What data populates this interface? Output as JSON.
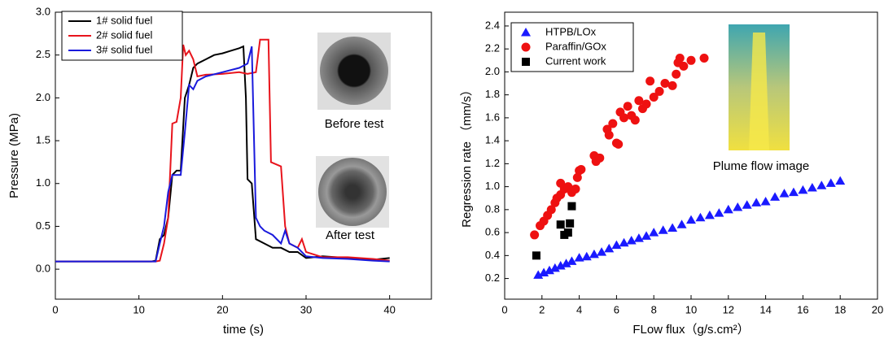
{
  "chart_data": [
    {
      "type": "line",
      "x_label": "time (s)",
      "y_label": "Pressure (MPa)",
      "xlim": [
        0,
        45
      ],
      "ylim": [
        -0.35,
        3.0
      ],
      "xticks": [
        0,
        10,
        20,
        30,
        40
      ],
      "yticks": [
        {
          "value": 0,
          "label": "0.0"
        },
        0.5,
        {
          "value": 1,
          "label": "1.0"
        },
        1.5,
        {
          "value": 2,
          "label": "2.0"
        },
        2.5,
        {
          "value": 3,
          "label": "3.0"
        }
      ],
      "annotations": [
        "Before test",
        "After test"
      ],
      "series": [
        {
          "name": "1# solid fuel",
          "color": "#000000",
          "x": [
            0,
            11.5,
            12,
            12.5,
            13,
            13.5,
            14,
            14.5,
            15,
            15.5,
            16,
            16.5,
            17,
            18,
            19,
            20,
            21,
            22,
            22.5,
            22.8,
            23,
            23.5,
            24,
            25,
            26,
            27,
            28,
            29,
            30,
            32,
            35,
            38,
            40
          ],
          "values": [
            0.09,
            0.09,
            0.1,
            0.35,
            0.4,
            0.6,
            1.1,
            1.15,
            1.15,
            2.0,
            2.15,
            2.35,
            2.4,
            2.45,
            2.5,
            2.52,
            2.55,
            2.58,
            2.6,
            2.0,
            1.05,
            1.0,
            0.35,
            0.3,
            0.25,
            0.25,
            0.2,
            0.2,
            0.13,
            0.15,
            0.13,
            0.11,
            0.13
          ]
        },
        {
          "name": "2# solid fuel",
          "color": "#e8141c",
          "x": [
            0,
            12,
            12.5,
            13,
            13.5,
            14,
            14.5,
            15,
            15.3,
            15.6,
            16,
            16.5,
            17,
            18,
            20,
            22,
            23,
            24,
            24.5,
            25.5,
            25.8,
            27,
            27.5,
            28,
            29,
            29.5,
            30,
            32,
            35,
            38,
            40
          ],
          "values": [
            0.09,
            0.09,
            0.1,
            0.3,
            0.6,
            1.7,
            1.72,
            2.0,
            2.62,
            2.5,
            2.55,
            2.45,
            2.25,
            2.27,
            2.28,
            2.3,
            2.28,
            2.3,
            2.68,
            2.68,
            1.25,
            1.2,
            0.5,
            0.3,
            0.25,
            0.35,
            0.2,
            0.14,
            0.14,
            0.12,
            0.1
          ]
        },
        {
          "name": "3# solid fuel",
          "color": "#1a1adc",
          "x": [
            0,
            12,
            12.5,
            13,
            13.5,
            14,
            15,
            15.5,
            16,
            16.5,
            17,
            18,
            20,
            22,
            23,
            23.5,
            24,
            24.5,
            25,
            26,
            27,
            27.5,
            28,
            29,
            30,
            32,
            35,
            38,
            40
          ],
          "values": [
            0.09,
            0.09,
            0.3,
            0.5,
            0.9,
            1.1,
            1.1,
            1.6,
            2.15,
            2.1,
            2.2,
            2.25,
            2.3,
            2.35,
            2.4,
            2.6,
            0.6,
            0.5,
            0.45,
            0.4,
            0.3,
            0.45,
            0.3,
            0.25,
            0.15,
            0.13,
            0.12,
            0.1,
            0.09
          ]
        }
      ]
    },
    {
      "type": "scatter",
      "x_label": "FLow flux（g/s.cm²）",
      "y_label": "Regression rate （mm/s）",
      "xlim": [
        0,
        20
      ],
      "ylim": [
        0.02,
        2.52
      ],
      "xticks": [
        0,
        2,
        4,
        6,
        8,
        10,
        12,
        14,
        16,
        18,
        20
      ],
      "yticks": [
        0.2,
        0.4,
        0.6,
        0.8,
        {
          "value": 1,
          "label": "1.0"
        },
        1.2,
        1.4,
        1.6,
        1.8,
        {
          "value": 2,
          "label": "2.0"
        },
        2.2,
        2.4
      ],
      "annotations": [
        "Plume flow image"
      ],
      "series": [
        {
          "name": "HTPB/LOx",
          "color": "#1a1aff",
          "marker": "triangle",
          "x": [
            1.8,
            2.1,
            2.4,
            2.7,
            3.0,
            3.3,
            3.6,
            4.0,
            4.4,
            4.8,
            5.2,
            5.6,
            6.0,
            6.4,
            6.8,
            7.2,
            7.6,
            8.0,
            8.5,
            9.0,
            9.5,
            10.0,
            10.5,
            11.0,
            11.5,
            12.0,
            12.5,
            13.0,
            13.5,
            14.0,
            14.5,
            15.0,
            15.5,
            16.0,
            16.5,
            17.0,
            17.5,
            18.0
          ],
          "values": [
            0.23,
            0.25,
            0.27,
            0.29,
            0.31,
            0.33,
            0.35,
            0.38,
            0.39,
            0.41,
            0.43,
            0.46,
            0.49,
            0.51,
            0.53,
            0.55,
            0.57,
            0.6,
            0.62,
            0.64,
            0.67,
            0.71,
            0.73,
            0.75,
            0.77,
            0.8,
            0.82,
            0.84,
            0.86,
            0.87,
            0.91,
            0.94,
            0.95,
            0.97,
            0.99,
            1.01,
            1.03,
            1.05
          ]
        },
        {
          "name": "Paraffin/GOx",
          "color": "#ee1111",
          "marker": "circle",
          "x": [
            1.6,
            1.9,
            2.1,
            2.3,
            2.5,
            2.7,
            2.8,
            3.0,
            3.0,
            3.2,
            3.4,
            3.6,
            3.8,
            3.9,
            4.0,
            4.1,
            4.8,
            4.9,
            5.1,
            5.5,
            5.6,
            5.8,
            6.0,
            6.1,
            6.2,
            6.4,
            6.6,
            6.8,
            7.0,
            7.2,
            7.4,
            7.6,
            7.8,
            8.0,
            8.3,
            8.6,
            9.0,
            9.2,
            9.3,
            9.4,
            9.6,
            10.0,
            10.7
          ],
          "values": [
            0.58,
            0.66,
            0.7,
            0.75,
            0.8,
            0.86,
            0.9,
            0.93,
            1.03,
            0.98,
            1.0,
            0.95,
            0.98,
            1.08,
            1.14,
            1.15,
            1.27,
            1.22,
            1.25,
            1.5,
            1.45,
            1.55,
            1.38,
            1.37,
            1.65,
            1.6,
            1.7,
            1.62,
            1.58,
            1.75,
            1.68,
            1.72,
            1.92,
            1.78,
            1.83,
            1.9,
            1.88,
            1.98,
            2.08,
            2.12,
            2.05,
            2.1,
            2.12
          ]
        },
        {
          "name": "Current work",
          "color": "#000000",
          "marker": "square",
          "x": [
            1.7,
            3.0,
            3.2,
            3.4,
            3.5,
            3.6
          ],
          "values": [
            0.4,
            0.67,
            0.58,
            0.6,
            0.68,
            0.83
          ]
        }
      ]
    }
  ]
}
